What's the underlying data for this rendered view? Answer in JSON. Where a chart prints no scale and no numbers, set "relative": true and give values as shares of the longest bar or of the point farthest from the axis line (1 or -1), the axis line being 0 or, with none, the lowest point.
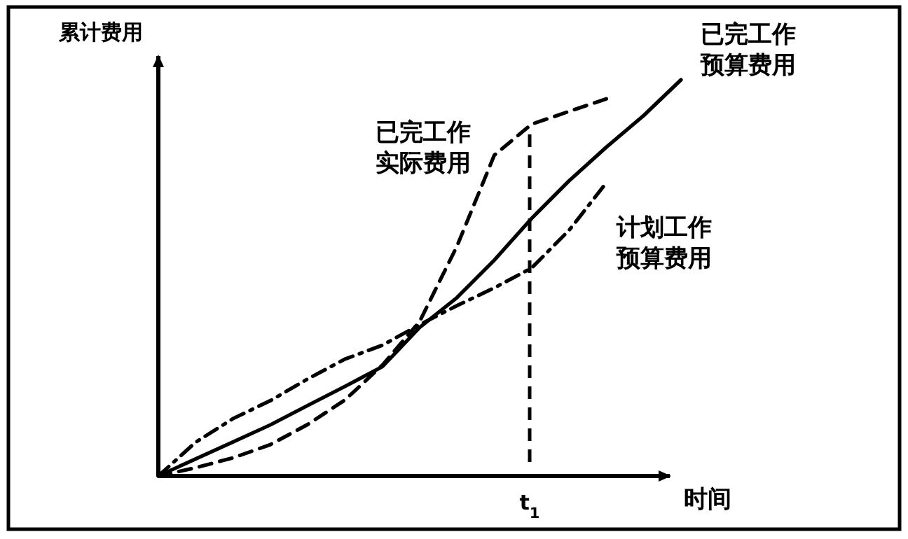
{
  "chart_data": {
    "type": "line",
    "relative": true,
    "xlabel": "时间",
    "ylabel": "累计费用",
    "marker": "none",
    "annotations": [
      "t$_{1}$"
    ],
    "categories": [
      null,
      null,
      null,
      null,
      null,
      null,
      null,
      null,
      null,
      null,
      null,
      null,
      null,
      null,
      null
    ],
    "series": [
      {
        "name": "已完工作预算费用",
        "color": "#000000",
        "line_style": "solid",
        "values": [
          0,
          0.043,
          0.086,
          0.129,
          0.178,
          0.226,
          0.276,
          0.375,
          0.45,
          0.545,
          0.65,
          0.745,
          0.83,
          0.91,
          1.0
        ]
      },
      {
        "name": "已完工作实际费用",
        "color": "#000000",
        "line_style": "dashed",
        "values": [
          0,
          0.021,
          0.046,
          0.079,
          0.13,
          0.192,
          0.28,
          0.39,
          0.58,
          0.81,
          0.888,
          0.92,
          0.952,
          null,
          null
        ]
      },
      {
        "name": "计划工作预算费用",
        "color": "#000000",
        "line_style": "dashdot",
        "values": [
          0,
          0.085,
          0.145,
          0.19,
          0.245,
          0.295,
          0.33,
          0.382,
          0.43,
          0.475,
          0.525,
          0.62,
          0.74,
          null,
          null
        ]
      }
    ]
  }
}
